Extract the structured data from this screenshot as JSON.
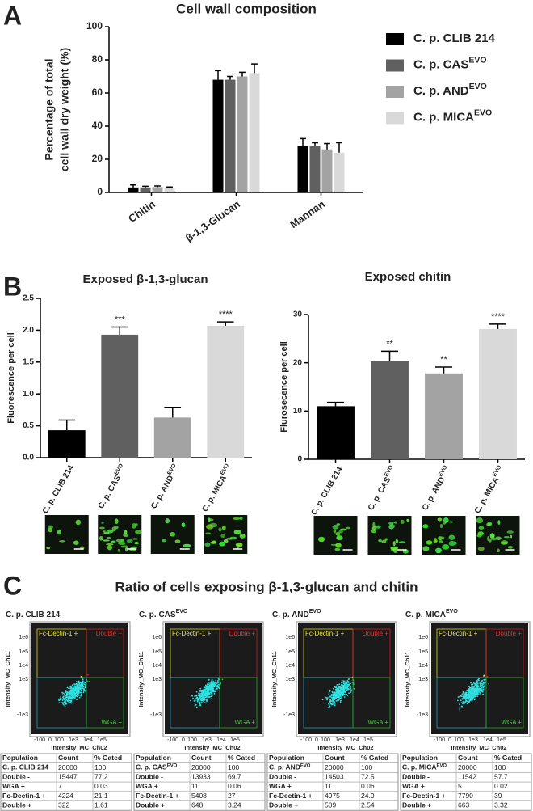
{
  "panel_labels": [
    "A",
    "B",
    "C"
  ],
  "chart_data": [
    {
      "type": "bar",
      "title": "Cell wall composition",
      "ylabel": [
        "Percentage of total",
        "cell wall dry weight (%)"
      ],
      "categories": [
        "Chitin",
        "β-1,3-Glucan",
        "Mannan"
      ],
      "series": [
        {
          "name": "C. p. CLIB 214",
          "color": "#000000",
          "values": [
            3,
            68,
            28
          ],
          "errors": [
            1.5,
            5.5,
            4.5
          ]
        },
        {
          "name": "C. p. CAS",
          "name_superscript": "EVO",
          "color": "#606060",
          "values": [
            3,
            68,
            28
          ],
          "errors": [
            0.7,
            2,
            2
          ]
        },
        {
          "name": "C. p. AND",
          "name_superscript": "EVO",
          "color": "#a3a3a3",
          "values": [
            3.2,
            70,
            26
          ],
          "errors": [
            0.7,
            2.5,
            3.5
          ]
        },
        {
          "name": "C. p. MICA",
          "name_superscript": "EVO",
          "color": "#d9d9d9",
          "values": [
            2.8,
            72,
            24
          ],
          "errors": [
            0.5,
            5.5,
            6
          ]
        }
      ],
      "ylim": [
        0,
        100
      ],
      "yticks": [
        0,
        20,
        40,
        60,
        80,
        100
      ]
    },
    {
      "type": "bar",
      "title": "Exposed β-1,3-glucan",
      "ylabel": "Fluorescence per cell",
      "categories": [
        "C. p.  CLIB 214",
        "C. p. CAS",
        "C. p. AND",
        "C. p. MICA"
      ],
      "category_superscripts": [
        null,
        "EVO",
        "EVO",
        "EVO"
      ],
      "values": [
        0.43,
        1.93,
        0.63,
        2.07
      ],
      "errors": [
        0.16,
        0.12,
        0.16,
        0.06
      ],
      "colors": [
        "#000000",
        "#606060",
        "#a3a3a3",
        "#d9d9d9"
      ],
      "significance": [
        null,
        "***",
        null,
        "****"
      ],
      "ylim": [
        0,
        2.5
      ],
      "yticks": [
        {
          "value": 0,
          "label": "0.0"
        },
        0.5,
        {
          "value": 1,
          "label": "1.0"
        },
        1.5,
        {
          "value": 2,
          "label": "2.0"
        },
        2.5
      ]
    },
    {
      "type": "bar",
      "title": "Exposed chitin",
      "ylabel": "Flurosecence per cell",
      "categories": [
        "C. p. CLIB 214",
        "C. p. CAS",
        "C. p. AND",
        "C. p. MICA"
      ],
      "category_superscripts": [
        null,
        "EVO",
        "EVO",
        "EVO"
      ],
      "values": [
        11,
        20.3,
        17.8,
        27
      ],
      "errors": [
        0.8,
        2.1,
        1.3,
        1
      ],
      "colors": [
        "#000000",
        "#606060",
        "#a3a3a3",
        "#d9d9d9"
      ],
      "significance": [
        null,
        "**",
        "**",
        "****"
      ],
      "ylim": [
        0,
        30
      ],
      "yticks": [
        0,
        10,
        20,
        30
      ]
    }
  ],
  "flow": {
    "title": "Ratio of cells exposing β-1,3-glucan and chitin",
    "x_label": "Intensity_MC_Ch02",
    "y_label": "Intensity_MC_Ch11",
    "gates": [
      "Fc-Dectin-1 +",
      "Double +",
      "WGA +"
    ],
    "y_tick_labels": [
      "1e6",
      "1e5",
      "1e4",
      "1e3",
      "-1e3"
    ],
    "x_tick_labels": [
      "-100",
      "0",
      "100",
      "1e3",
      "1e4",
      "1e5"
    ],
    "table_header": [
      "Population",
      "Count",
      "% Gated"
    ],
    "panels": [
      {
        "name": "C. p. CLIB 214",
        "rows": [
          [
            "C. p. CLIB 214",
            "20000",
            "100"
          ],
          [
            "Double -",
            "15447",
            "77.2"
          ],
          [
            "WGA +",
            "7",
            "0.03"
          ],
          [
            "Fc-Dectin-1 +",
            "4224",
            "21.1"
          ],
          [
            "Double +",
            "322",
            "1.61"
          ]
        ]
      },
      {
        "name": "C. p. CAS",
        "superscript": "EVO",
        "rows": [
          [
            "C. p. CAS",
            "20000",
            "100"
          ],
          [
            "Double -",
            "13933",
            "69.7"
          ],
          [
            "WGA +",
            "11",
            "0.06"
          ],
          [
            "Fc-Dectin-1 +",
            "5408",
            "27"
          ],
          [
            "Double +",
            "648",
            "3.24"
          ]
        ]
      },
      {
        "name": "C. p. AND",
        "superscript": "EVO",
        "rows": [
          [
            "C. p. AND",
            "20000",
            "100"
          ],
          [
            "Double -",
            "14503",
            "72.5"
          ],
          [
            "WGA +",
            "11",
            "0.06"
          ],
          [
            "Fc-Dectin-1 +",
            "4975",
            "24.9"
          ],
          [
            "Double +",
            "509",
            "2.54"
          ]
        ]
      },
      {
        "name": "C. p. MICA",
        "superscript": "EVO",
        "rows": [
          [
            "C. p. MICA",
            "20000",
            "100"
          ],
          [
            "Double -",
            "11542",
            "57.7"
          ],
          [
            "WGA +",
            "5",
            "0.02"
          ],
          [
            "Fc-Dectin-1 +",
            "7790",
            "39"
          ],
          [
            "Double +",
            "663",
            "3.32"
          ]
        ]
      }
    ]
  }
}
